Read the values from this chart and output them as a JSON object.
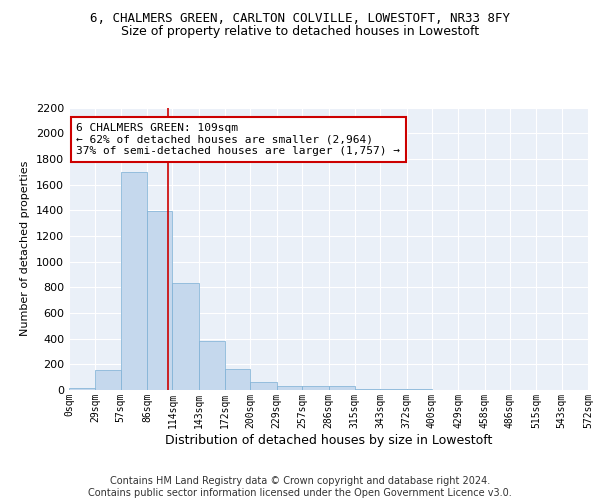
{
  "title": "6, CHALMERS GREEN, CARLTON COLVILLE, LOWESTOFT, NR33 8FY",
  "subtitle": "Size of property relative to detached houses in Lowestoft",
  "xlabel": "Distribution of detached houses by size in Lowestoft",
  "ylabel": "Number of detached properties",
  "bar_color": "#c5d8ed",
  "bar_edge_color": "#7aafd4",
  "background_color": "#eaf0f8",
  "grid_color": "#ffffff",
  "bin_edges": [
    0,
    29,
    57,
    86,
    114,
    143,
    172,
    200,
    229,
    257,
    286,
    315,
    343,
    372,
    400,
    429,
    458,
    486,
    515,
    543,
    572
  ],
  "bar_heights": [
    15,
    155,
    1700,
    1395,
    835,
    380,
    165,
    65,
    35,
    30,
    30,
    5,
    5,
    5,
    0,
    0,
    0,
    0,
    0,
    0
  ],
  "tick_labels": [
    "0sqm",
    "29sqm",
    "57sqm",
    "86sqm",
    "114sqm",
    "143sqm",
    "172sqm",
    "200sqm",
    "229sqm",
    "257sqm",
    "286sqm",
    "315sqm",
    "343sqm",
    "372sqm",
    "400sqm",
    "429sqm",
    "458sqm",
    "486sqm",
    "515sqm",
    "543sqm",
    "572sqm"
  ],
  "ylim": [
    0,
    2200
  ],
  "yticks": [
    0,
    200,
    400,
    600,
    800,
    1000,
    1200,
    1400,
    1600,
    1800,
    2000,
    2200
  ],
  "red_line_x": 109,
  "annotation_text": "6 CHALMERS GREEN: 109sqm\n← 62% of detached houses are smaller (2,964)\n37% of semi-detached houses are larger (1,757) →",
  "annotation_box_color": "#ffffff",
  "annotation_box_edge": "#cc0000",
  "red_line_color": "#cc0000",
  "footer_text": "Contains HM Land Registry data © Crown copyright and database right 2024.\nContains public sector information licensed under the Open Government Licence v3.0.",
  "title_fontsize": 9,
  "subtitle_fontsize": 9,
  "annotation_fontsize": 8,
  "footer_fontsize": 7,
  "ylabel_fontsize": 8,
  "xlabel_fontsize": 9,
  "ytick_fontsize": 8,
  "xtick_fontsize": 7
}
